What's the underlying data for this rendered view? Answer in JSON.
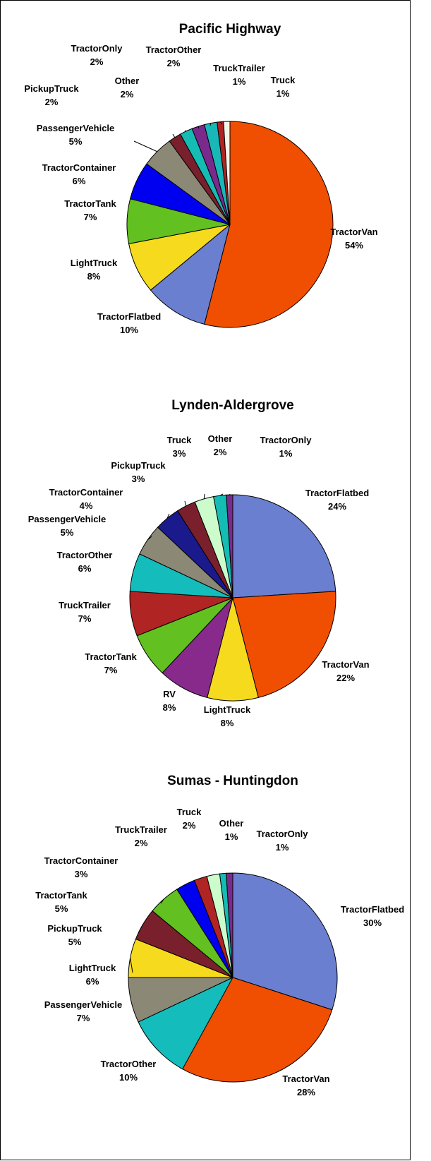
{
  "chart_data": [
    {
      "type": "pie",
      "title": "Pacific Highway",
      "categories": [
        "TractorVan",
        "TractorFlatbed",
        "LightTruck",
        "TractorTank",
        "TractorContainer",
        "PassengerVehicle",
        "PickupTruck",
        "Other",
        "TractorOnly",
        "TractorOther",
        "TruckTrailer",
        "Truck"
      ],
      "values": [
        54,
        10,
        8,
        7,
        6,
        5,
        2,
        2,
        2,
        2,
        1,
        1
      ],
      "value_labels": [
        "54%",
        "10%",
        "8%",
        "7%",
        "6%",
        "5%",
        "2%",
        "2%",
        "2%",
        "2%",
        "1%",
        "1%"
      ],
      "colors": [
        "#f04e00",
        "#6a7fd0",
        "#f6da1e",
        "#62c020",
        "#0000f0",
        "#8c8876",
        "#7a1f2c",
        "#14bcb4",
        "#7a2a8c",
        "#18b8b8",
        "#b02424",
        "#f4f4e8"
      ]
    },
    {
      "type": "pie",
      "title": "Lynden-Aldergrove",
      "categories": [
        "TractorFlatbed",
        "TractorVan",
        "LightTruck",
        "RV",
        "TractorTank",
        "TruckTrailer",
        "TractorOther",
        "PassengerVehicle",
        "TractorContainer",
        "PickupTruck",
        "Truck",
        "Other",
        "TractorOnly"
      ],
      "values": [
        24,
        22,
        8,
        8,
        7,
        7,
        6,
        5,
        4,
        3,
        3,
        2,
        1
      ],
      "value_labels": [
        "24%",
        "22%",
        "8%",
        "8%",
        "7%",
        "7%",
        "6%",
        "5%",
        "4%",
        "3%",
        "3%",
        "2%",
        "1%"
      ],
      "colors": [
        "#6a7fd0",
        "#f04e00",
        "#f6da1e",
        "#882a8c",
        "#62c020",
        "#b02424",
        "#14bcbc",
        "#8c8876",
        "#1a1a8c",
        "#7a1f2c",
        "#ccfccc",
        "#14bcb4",
        "#7a2a8c"
      ]
    },
    {
      "type": "pie",
      "title": "Sumas - Huntingdon",
      "categories": [
        "TractorFlatbed",
        "TractorVan",
        "TractorOther",
        "PassengerVehicle",
        "LightTruck",
        "PickupTruck",
        "TractorTank",
        "TractorContainer",
        "TruckTrailer",
        "Truck",
        "Other",
        "TractorOnly"
      ],
      "values": [
        30,
        28,
        10,
        7,
        6,
        5,
        5,
        3,
        2,
        2,
        1,
        1
      ],
      "value_labels": [
        "30%",
        "28%",
        "10%",
        "7%",
        "6%",
        "5%",
        "5%",
        "3%",
        "2%",
        "2%",
        "1%",
        "1%"
      ],
      "colors": [
        "#6a7fd0",
        "#f04e00",
        "#14bcbc",
        "#8c8876",
        "#f6da1e",
        "#7a1f2c",
        "#62c020",
        "#0000f0",
        "#b02424",
        "#ccfccc",
        "#14bcb4",
        "#7a2a8c"
      ]
    }
  ]
}
